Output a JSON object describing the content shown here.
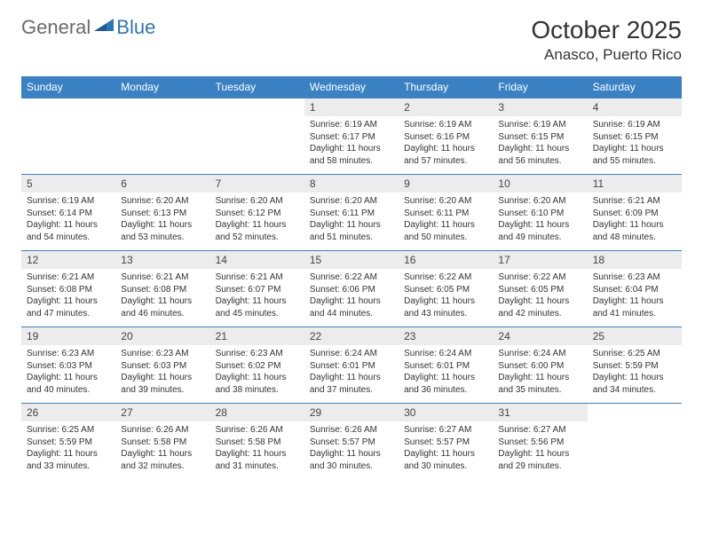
{
  "logo": {
    "general": "General",
    "blue": "Blue"
  },
  "title": "October 2025",
  "location": "Anasco, Puerto Rico",
  "colors": {
    "header_bg": "#3a81c4",
    "header_fg": "#ffffff",
    "daynum_bg": "#ececec",
    "border": "#3a81c4",
    "logo_gray": "#6a6a6a",
    "logo_blue": "#2e75b6"
  },
  "weekdays": [
    "Sunday",
    "Monday",
    "Tuesday",
    "Wednesday",
    "Thursday",
    "Friday",
    "Saturday"
  ],
  "weeks": [
    [
      null,
      null,
      null,
      {
        "n": "1",
        "sunrise": "6:19 AM",
        "sunset": "6:17 PM",
        "dl": "11 hours and 58 minutes."
      },
      {
        "n": "2",
        "sunrise": "6:19 AM",
        "sunset": "6:16 PM",
        "dl": "11 hours and 57 minutes."
      },
      {
        "n": "3",
        "sunrise": "6:19 AM",
        "sunset": "6:15 PM",
        "dl": "11 hours and 56 minutes."
      },
      {
        "n": "4",
        "sunrise": "6:19 AM",
        "sunset": "6:15 PM",
        "dl": "11 hours and 55 minutes."
      }
    ],
    [
      {
        "n": "5",
        "sunrise": "6:19 AM",
        "sunset": "6:14 PM",
        "dl": "11 hours and 54 minutes."
      },
      {
        "n": "6",
        "sunrise": "6:20 AM",
        "sunset": "6:13 PM",
        "dl": "11 hours and 53 minutes."
      },
      {
        "n": "7",
        "sunrise": "6:20 AM",
        "sunset": "6:12 PM",
        "dl": "11 hours and 52 minutes."
      },
      {
        "n": "8",
        "sunrise": "6:20 AM",
        "sunset": "6:11 PM",
        "dl": "11 hours and 51 minutes."
      },
      {
        "n": "9",
        "sunrise": "6:20 AM",
        "sunset": "6:11 PM",
        "dl": "11 hours and 50 minutes."
      },
      {
        "n": "10",
        "sunrise": "6:20 AM",
        "sunset": "6:10 PM",
        "dl": "11 hours and 49 minutes."
      },
      {
        "n": "11",
        "sunrise": "6:21 AM",
        "sunset": "6:09 PM",
        "dl": "11 hours and 48 minutes."
      }
    ],
    [
      {
        "n": "12",
        "sunrise": "6:21 AM",
        "sunset": "6:08 PM",
        "dl": "11 hours and 47 minutes."
      },
      {
        "n": "13",
        "sunrise": "6:21 AM",
        "sunset": "6:08 PM",
        "dl": "11 hours and 46 minutes."
      },
      {
        "n": "14",
        "sunrise": "6:21 AM",
        "sunset": "6:07 PM",
        "dl": "11 hours and 45 minutes."
      },
      {
        "n": "15",
        "sunrise": "6:22 AM",
        "sunset": "6:06 PM",
        "dl": "11 hours and 44 minutes."
      },
      {
        "n": "16",
        "sunrise": "6:22 AM",
        "sunset": "6:05 PM",
        "dl": "11 hours and 43 minutes."
      },
      {
        "n": "17",
        "sunrise": "6:22 AM",
        "sunset": "6:05 PM",
        "dl": "11 hours and 42 minutes."
      },
      {
        "n": "18",
        "sunrise": "6:23 AM",
        "sunset": "6:04 PM",
        "dl": "11 hours and 41 minutes."
      }
    ],
    [
      {
        "n": "19",
        "sunrise": "6:23 AM",
        "sunset": "6:03 PM",
        "dl": "11 hours and 40 minutes."
      },
      {
        "n": "20",
        "sunrise": "6:23 AM",
        "sunset": "6:03 PM",
        "dl": "11 hours and 39 minutes."
      },
      {
        "n": "21",
        "sunrise": "6:23 AM",
        "sunset": "6:02 PM",
        "dl": "11 hours and 38 minutes."
      },
      {
        "n": "22",
        "sunrise": "6:24 AM",
        "sunset": "6:01 PM",
        "dl": "11 hours and 37 minutes."
      },
      {
        "n": "23",
        "sunrise": "6:24 AM",
        "sunset": "6:01 PM",
        "dl": "11 hours and 36 minutes."
      },
      {
        "n": "24",
        "sunrise": "6:24 AM",
        "sunset": "6:00 PM",
        "dl": "11 hours and 35 minutes."
      },
      {
        "n": "25",
        "sunrise": "6:25 AM",
        "sunset": "5:59 PM",
        "dl": "11 hours and 34 minutes."
      }
    ],
    [
      {
        "n": "26",
        "sunrise": "6:25 AM",
        "sunset": "5:59 PM",
        "dl": "11 hours and 33 minutes."
      },
      {
        "n": "27",
        "sunrise": "6:26 AM",
        "sunset": "5:58 PM",
        "dl": "11 hours and 32 minutes."
      },
      {
        "n": "28",
        "sunrise": "6:26 AM",
        "sunset": "5:58 PM",
        "dl": "11 hours and 31 minutes."
      },
      {
        "n": "29",
        "sunrise": "6:26 AM",
        "sunset": "5:57 PM",
        "dl": "11 hours and 30 minutes."
      },
      {
        "n": "30",
        "sunrise": "6:27 AM",
        "sunset": "5:57 PM",
        "dl": "11 hours and 30 minutes."
      },
      {
        "n": "31",
        "sunrise": "6:27 AM",
        "sunset": "5:56 PM",
        "dl": "11 hours and 29 minutes."
      },
      null
    ]
  ],
  "labels": {
    "sunrise": "Sunrise:",
    "sunset": "Sunset:",
    "daylight": "Daylight:"
  }
}
